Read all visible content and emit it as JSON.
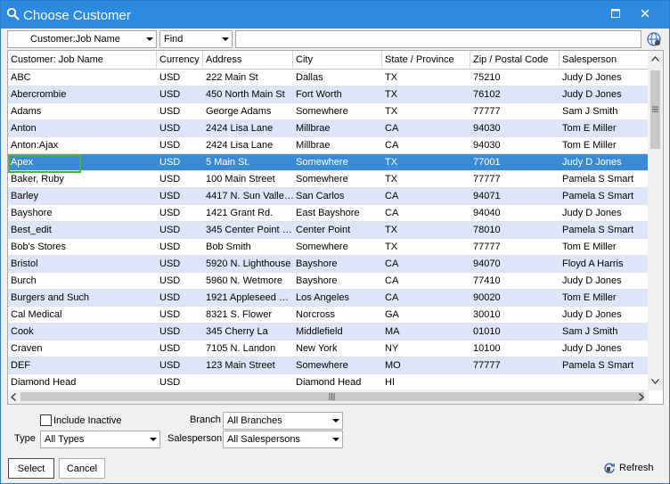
{
  "window": {
    "title": "Choose Customer",
    "title_icon": "search-icon",
    "buttons": {
      "maximize": "maximize-icon",
      "close": "close-icon"
    }
  },
  "search": {
    "field_combo": "Customer:Job Name",
    "mode_combo": "Find",
    "text": "",
    "globe_icon": "globe-icon"
  },
  "grid": {
    "columns": [
      "Customer: Job Name",
      "Currency",
      "Address",
      "City",
      "State / Province",
      "Zip / Postal Code",
      "Salesperson"
    ],
    "selected_row": 5,
    "rows": [
      [
        "ABC",
        "USD",
        "222 Main St",
        "Dallas",
        "TX",
        "75210",
        "Judy D Jones"
      ],
      [
        "Abercrombie",
        "USD",
        "450 North Main St",
        "Fort Worth",
        "TX",
        "76102",
        "Judy D Jones"
      ],
      [
        "Adams",
        "USD",
        "George Adams",
        "Somewhere",
        "TX",
        "77777",
        "Sam J Smith"
      ],
      [
        "Anton",
        "USD",
        "2424 Lisa Lane",
        "Millbrae",
        "CA",
        "94030",
        "Tom E Miller"
      ],
      [
        "Anton:Ajax",
        "USD",
        "2424 Lisa Lane",
        "Millbrae",
        "CA",
        "94030",
        "Tom E Miller"
      ],
      [
        "Apex",
        "USD",
        "5 Main St.",
        "Somewhere",
        "TX",
        "77001",
        "Judy D Jones"
      ],
      [
        "Baker, Ruby",
        "USD",
        "100 Main Street",
        "Somewhere",
        "TX",
        "77777",
        "Pamela S Smart"
      ],
      [
        "Barley",
        "USD",
        "4417 N. Sun Valle…",
        "San Carlos",
        "CA",
        "94071",
        "Pamela S Smart"
      ],
      [
        "Bayshore",
        "USD",
        "1421 Grant Rd.",
        "East Bayshore",
        "CA",
        "94040",
        "Judy D Jones"
      ],
      [
        "Best_edit",
        "USD",
        "345 Center Point …",
        "Center Point",
        "TX",
        "78010",
        "Pamela S Smart"
      ],
      [
        "Bob's Stores",
        "USD",
        "Bob Smith",
        "Somewhere",
        "TX",
        "77777",
        "Tom E Miller"
      ],
      [
        "Bristol",
        "USD",
        "5920 N. Lighthouse",
        "Bayshore",
        "CA",
        "94070",
        "Floyd A Harris"
      ],
      [
        "Burch",
        "USD",
        "5960 N. Wetmore",
        "Bayshore",
        "CA",
        "77410",
        "Judy D Jones"
      ],
      [
        "Burgers and Such",
        "USD",
        "1921 Appleseed …",
        "Los Angeles",
        "CA",
        "90020",
        "Tom E Miller"
      ],
      [
        "Cal Medical",
        "USD",
        "8321 S. Flower",
        "Norcross",
        "GA",
        "30010",
        "Judy D Jones"
      ],
      [
        "Cook",
        "USD",
        "345 Cherry La",
        "Middlefield",
        "MA",
        "01010",
        "Sam J Smith"
      ],
      [
        "Craven",
        "USD",
        "7105 N. Landon",
        "New York",
        "NY",
        "10100",
        "Judy D Jones"
      ],
      [
        "DEF",
        "USD",
        "123 Main Street",
        "Somewhere",
        "MO",
        "77777",
        "Pamela S Smart"
      ],
      [
        "Diamond Head",
        "USD",
        "",
        "Diamond Head",
        "HI",
        "",
        ""
      ]
    ]
  },
  "filters": {
    "include_inactive_label": "Include Inactive",
    "include_inactive_checked": false,
    "type_label": "Type",
    "type_value": "All Types",
    "branch_label": "Branch",
    "branch_value": "All Branches",
    "salesperson_label": "Salesperson",
    "salesperson_value": "All Salespersons"
  },
  "buttons": {
    "select": "Select",
    "cancel": "Cancel",
    "refresh": "Refresh",
    "refresh_icon": "refresh-icon"
  },
  "colors": {
    "titlebar": "#2d8ae0",
    "row_alt": "#dce6f8",
    "row_selected": "#3a8ad6",
    "focus_border": "#4fb04a"
  }
}
